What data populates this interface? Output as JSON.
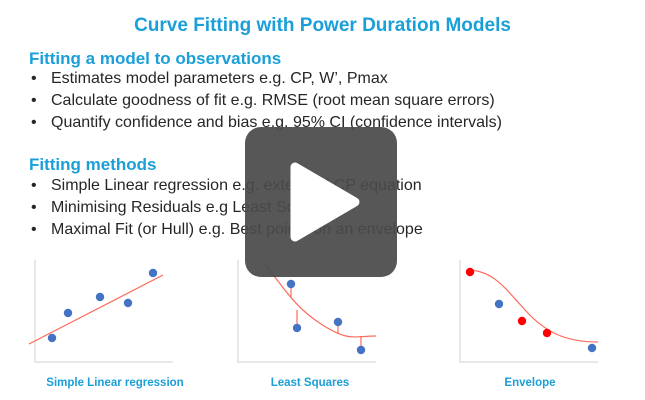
{
  "slide": {
    "title": "Curve Fitting with Power Duration Models",
    "section1": {
      "heading": "Fitting a model to observations",
      "bullets": [
        "Estimates model parameters e.g. CP, W’, Pmax",
        "Calculate goodness of fit e.g. RMSE (root mean square errors)",
        "Quantify confidence and bias e.g. 95% CI (confidence intervals)"
      ]
    },
    "section2": {
      "heading": "Fitting methods",
      "bullets": [
        "Simple Linear regression e.g. extended CP equation",
        "Minimising Residuals e.g Least Squares",
        "Maximal Fit (or Hull) e.g. Best points on an envelope"
      ]
    },
    "bullet_symbol": "•",
    "captions": [
      "Simple Linear regression",
      "Least Squares",
      "Envelope"
    ]
  },
  "overlay": {
    "icon": "play-icon"
  },
  "colors": {
    "accent": "#1a9fd8",
    "point": "#4472c4",
    "highlight_point": "#ff0000",
    "fit_line": "#ff6a5a",
    "overlay": "#4a4a4a"
  }
}
